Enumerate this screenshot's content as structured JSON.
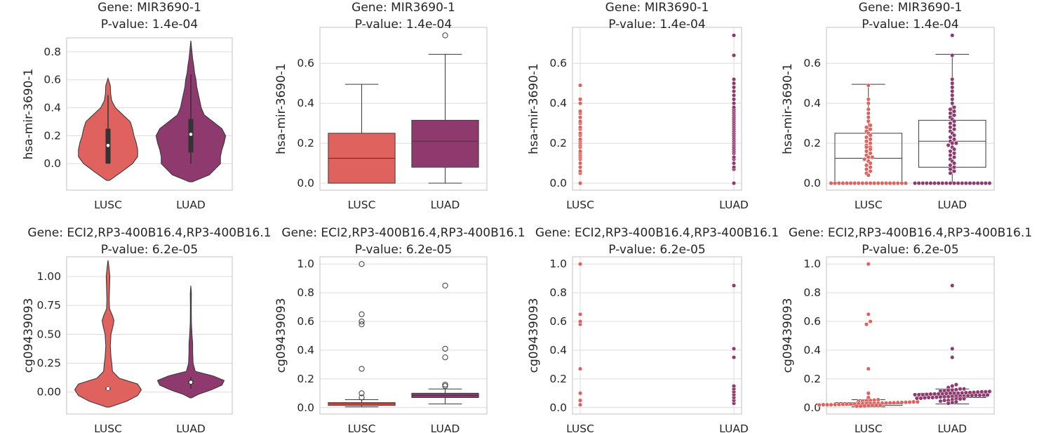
{
  "colors": {
    "lusc": "#e0625f",
    "luad": "#8e3a6e",
    "grid": "#dcdcdc",
    "spine": "#cccccc",
    "line": "#3a3a3a"
  },
  "chart_data": [
    {
      "type": "violin",
      "title": [
        "Gene: MIR3690-1",
        "P-value: 1.4e-04"
      ],
      "ylabel": "hsa-mir-3690-1",
      "categories": [
        "LUSC",
        "LUAD"
      ],
      "ylim": [
        -0.19,
        0.9
      ],
      "yticks": [
        0.0,
        0.2,
        0.4,
        0.6,
        0.8
      ],
      "yticklabels": [
        "0.0",
        "0.2",
        "0.4",
        "0.6",
        "0.8"
      ],
      "violins": [
        {
          "profile": [
            [
              -0.12,
              0.02
            ],
            [
              -0.06,
              0.18
            ],
            [
              0.0,
              0.33
            ],
            [
              0.05,
              0.4
            ],
            [
              0.1,
              0.4
            ],
            [
              0.15,
              0.38
            ],
            [
              0.2,
              0.35
            ],
            [
              0.25,
              0.33
            ],
            [
              0.3,
              0.3
            ],
            [
              0.35,
              0.2
            ],
            [
              0.4,
              0.1
            ],
            [
              0.45,
              0.05
            ],
            [
              0.5,
              0.035
            ],
            [
              0.56,
              0.03
            ],
            [
              0.61,
              0.0
            ]
          ],
          "q1": 0.0,
          "median": 0.13,
          "q3": 0.25,
          "wlo": 0.0,
          "whi": 0.49
        },
        {
          "profile": [
            [
              -0.13,
              0.02
            ],
            [
              -0.08,
              0.25
            ],
            [
              0.0,
              0.4
            ],
            [
              0.05,
              0.4
            ],
            [
              0.1,
              0.42
            ],
            [
              0.15,
              0.45
            ],
            [
              0.2,
              0.47
            ],
            [
              0.25,
              0.42
            ],
            [
              0.3,
              0.3
            ],
            [
              0.35,
              0.18
            ],
            [
              0.4,
              0.14
            ],
            [
              0.45,
              0.12
            ],
            [
              0.5,
              0.1
            ],
            [
              0.55,
              0.08
            ],
            [
              0.6,
              0.07
            ],
            [
              0.65,
              0.05
            ],
            [
              0.7,
              0.04
            ],
            [
              0.75,
              0.025
            ],
            [
              0.8,
              0.015
            ],
            [
              0.88,
              0.0
            ]
          ],
          "q1": 0.08,
          "median": 0.21,
          "q3": 0.32,
          "wlo": 0.0,
          "whi": 0.64
        }
      ]
    },
    {
      "type": "box",
      "title": [
        "Gene: MIR3690-1",
        "P-value: 1.4e-04"
      ],
      "ylabel": "hsa-mir-3690-1",
      "categories": [
        "LUSC",
        "LUAD"
      ],
      "ylim": [
        -0.035,
        0.78
      ],
      "yticks": [
        0.0,
        0.2,
        0.4,
        0.6
      ],
      "yticklabels": [
        "0.0",
        "0.2",
        "0.4",
        "0.6"
      ],
      "boxes": [
        {
          "q1": 0.0,
          "median": 0.125,
          "q3": 0.25,
          "wlo": 0.0,
          "whi": 0.495,
          "fliers": []
        },
        {
          "q1": 0.08,
          "median": 0.21,
          "q3": 0.315,
          "wlo": 0.0,
          "whi": 0.645,
          "fliers": [
            0.74
          ]
        }
      ]
    },
    {
      "type": "strip",
      "title": [
        "Gene: MIR3690-1",
        "P-value: 1.4e-04"
      ],
      "ylabel": "hsa-mir-3690-1",
      "categories": [
        "LUSC",
        "LUAD"
      ],
      "ylim": [
        -0.035,
        0.78
      ],
      "yticks": [
        0.0,
        0.2,
        0.4,
        0.6
      ],
      "yticklabels": [
        "0.0",
        "0.2",
        "0.4",
        "0.6"
      ],
      "points": [
        [
          0.0,
          0.05,
          0.06,
          0.08,
          0.1,
          0.12,
          0.13,
          0.14,
          0.15,
          0.16,
          0.18,
          0.19,
          0.2,
          0.21,
          0.22,
          0.24,
          0.25,
          0.27,
          0.28,
          0.3,
          0.31,
          0.33,
          0.35,
          0.36,
          0.4,
          0.42,
          0.49
        ],
        [
          0.0,
          0.07,
          0.08,
          0.1,
          0.12,
          0.13,
          0.15,
          0.16,
          0.17,
          0.18,
          0.19,
          0.2,
          0.21,
          0.22,
          0.23,
          0.24,
          0.25,
          0.26,
          0.27,
          0.28,
          0.29,
          0.3,
          0.31,
          0.32,
          0.33,
          0.34,
          0.35,
          0.36,
          0.37,
          0.38,
          0.4,
          0.42,
          0.44,
          0.46,
          0.48,
          0.5,
          0.52,
          0.64,
          0.74
        ]
      ]
    },
    {
      "type": "box_swarm",
      "title": [
        "Gene: MIR3690-1",
        "P-value: 1.4e-04"
      ],
      "ylabel": "hsa-mir-3690-1",
      "categories": [
        "LUSC",
        "LUAD"
      ],
      "ylim": [
        -0.035,
        0.78
      ],
      "yticks": [
        0.0,
        0.2,
        0.4,
        0.6
      ],
      "yticklabels": [
        "0.0",
        "0.2",
        "0.4",
        "0.6"
      ],
      "boxes": [
        {
          "q1": 0.0,
          "median": 0.125,
          "q3": 0.25,
          "wlo": 0.0,
          "whi": 0.495
        },
        {
          "q1": 0.08,
          "median": 0.21,
          "q3": 0.315,
          "wlo": 0.0,
          "whi": 0.645
        }
      ],
      "points": [
        [
          0,
          0,
          0,
          0,
          0,
          0,
          0,
          0,
          0,
          0,
          0,
          0,
          0,
          0,
          0,
          0,
          0,
          0,
          0,
          0,
          0.04,
          0.05,
          0.06,
          0.07,
          0.08,
          0.09,
          0.1,
          0.11,
          0.12,
          0.13,
          0.13,
          0.14,
          0.15,
          0.16,
          0.17,
          0.18,
          0.18,
          0.19,
          0.2,
          0.21,
          0.22,
          0.23,
          0.24,
          0.25,
          0.26,
          0.27,
          0.28,
          0.29,
          0.31,
          0.33,
          0.35,
          0.37,
          0.4,
          0.42,
          0.49
        ],
        [
          0,
          0,
          0,
          0,
          0,
          0,
          0,
          0,
          0,
          0,
          0,
          0,
          0,
          0,
          0,
          0,
          0,
          0,
          0,
          0,
          0.05,
          0.06,
          0.07,
          0.08,
          0.09,
          0.1,
          0.11,
          0.12,
          0.13,
          0.14,
          0.15,
          0.16,
          0.17,
          0.18,
          0.19,
          0.2,
          0.2,
          0.21,
          0.22,
          0.23,
          0.24,
          0.25,
          0.26,
          0.27,
          0.28,
          0.29,
          0.3,
          0.31,
          0.32,
          0.33,
          0.34,
          0.35,
          0.36,
          0.37,
          0.38,
          0.4,
          0.42,
          0.44,
          0.46,
          0.48,
          0.5,
          0.52,
          0.64,
          0.74
        ]
      ]
    },
    {
      "type": "violin",
      "title": [
        "Gene: ECI2,RP3-400B16.4,RP3-400B16.1",
        "P-value: 6.2e-05"
      ],
      "ylabel": "cg09439093",
      "categories": [
        "LUSC",
        "LUAD"
      ],
      "ylim": [
        -0.19,
        1.17
      ],
      "yticks": [
        0.0,
        0.25,
        0.5,
        0.75,
        1.0
      ],
      "yticklabels": [
        "0.00",
        "0.25",
        "0.50",
        "0.75",
        "1.00"
      ],
      "violins": [
        {
          "profile": [
            [
              -0.13,
              0.02
            ],
            [
              -0.08,
              0.25
            ],
            [
              -0.03,
              0.4
            ],
            [
              0.02,
              0.45
            ],
            [
              0.07,
              0.4
            ],
            [
              0.12,
              0.15
            ],
            [
              0.18,
              0.06
            ],
            [
              0.25,
              0.05
            ],
            [
              0.3,
              0.04
            ],
            [
              0.4,
              0.03
            ],
            [
              0.5,
              0.04
            ],
            [
              0.58,
              0.07
            ],
            [
              0.62,
              0.08
            ],
            [
              0.66,
              0.06
            ],
            [
              0.72,
              0.02
            ],
            [
              0.8,
              0.015
            ],
            [
              0.9,
              0.02
            ],
            [
              1.0,
              0.025
            ],
            [
              1.08,
              0.012
            ],
            [
              1.14,
              0.0
            ]
          ],
          "q1": 0.02,
          "median": 0.03,
          "q3": 0.04,
          "wlo": 0.01,
          "whi": 0.05
        },
        {
          "profile": [
            [
              -0.05,
              0.01
            ],
            [
              -0.02,
              0.1
            ],
            [
              0.02,
              0.28
            ],
            [
              0.06,
              0.42
            ],
            [
              0.1,
              0.45
            ],
            [
              0.14,
              0.3
            ],
            [
              0.18,
              0.06
            ],
            [
              0.25,
              0.03
            ],
            [
              0.35,
              0.025
            ],
            [
              0.42,
              0.025
            ],
            [
              0.5,
              0.015
            ],
            [
              0.6,
              0.008
            ],
            [
              0.75,
              0.006
            ],
            [
              0.85,
              0.008
            ],
            [
              0.92,
              0.0
            ]
          ],
          "q1": 0.07,
          "median": 0.085,
          "q3": 0.1,
          "wlo": 0.03,
          "whi": 0.13
        }
      ]
    },
    {
      "type": "box",
      "title": [
        "Gene: ECI2,RP3-400B16.4,RP3-400B16.1",
        "P-value: 6.2e-05"
      ],
      "ylabel": "cg09439093",
      "categories": [
        "LUSC",
        "LUAD"
      ],
      "ylim": [
        -0.045,
        1.05
      ],
      "yticks": [
        0.0,
        0.2,
        0.4,
        0.6,
        0.8,
        1.0
      ],
      "yticklabels": [
        "0.0",
        "0.2",
        "0.4",
        "0.6",
        "0.8",
        "1.0"
      ],
      "boxes": [
        {
          "q1": 0.015,
          "median": 0.025,
          "q3": 0.035,
          "wlo": 0.005,
          "whi": 0.055,
          "fliers": [
            0.07,
            0.1,
            0.27,
            0.58,
            0.6,
            0.65,
            1.0
          ]
        },
        {
          "q1": 0.07,
          "median": 0.085,
          "q3": 0.1,
          "wlo": 0.025,
          "whi": 0.13,
          "fliers": [
            0.15,
            0.16,
            0.35,
            0.41,
            0.85
          ]
        }
      ]
    },
    {
      "type": "strip",
      "title": [
        "Gene: ECI2,RP3-400B16.4,RP3-400B16.1",
        "P-value: 6.2e-05"
      ],
      "ylabel": "cg09439093",
      "categories": [
        "LUSC",
        "LUAD"
      ],
      "ylim": [
        -0.045,
        1.05
      ],
      "yticks": [
        0.0,
        0.2,
        0.4,
        0.6,
        0.8,
        1.0
      ],
      "yticklabels": [
        "0.0",
        "0.2",
        "0.4",
        "0.6",
        "0.8",
        "1.0"
      ],
      "points": [
        [
          0.02,
          0.05,
          0.1,
          0.27,
          0.58,
          0.6,
          0.65,
          1.0
        ],
        [
          0.03,
          0.05,
          0.07,
          0.09,
          0.11,
          0.13,
          0.15,
          0.35,
          0.41,
          0.85
        ]
      ]
    },
    {
      "type": "box_swarm",
      "title": [
        "Gene: ECI2,RP3-400B16.4,RP3-400B16.1",
        "P-value: 6.2e-05"
      ],
      "ylabel": "cg09439093",
      "categories": [
        "LUSC",
        "LUAD"
      ],
      "ylim": [
        -0.045,
        1.05
      ],
      "yticks": [
        0.0,
        0.2,
        0.4,
        0.6,
        0.8,
        1.0
      ],
      "yticklabels": [
        "0.0",
        "0.2",
        "0.4",
        "0.6",
        "0.8",
        "1.0"
      ],
      "boxes": [
        {
          "q1": 0.015,
          "median": 0.025,
          "q3": 0.035,
          "wlo": 0.005,
          "whi": 0.055
        },
        {
          "q1": 0.07,
          "median": 0.085,
          "q3": 0.1,
          "wlo": 0.025,
          "whi": 0.13
        }
      ],
      "points": [
        [
          0.01,
          0.01,
          0.012,
          0.014,
          0.015,
          0.015,
          0.016,
          0.018,
          0.02,
          0.02,
          0.02,
          0.021,
          0.022,
          0.023,
          0.024,
          0.025,
          0.025,
          0.026,
          0.027,
          0.028,
          0.029,
          0.03,
          0.03,
          0.031,
          0.032,
          0.033,
          0.034,
          0.035,
          0.036,
          0.037,
          0.038,
          0.04,
          0.04,
          0.042,
          0.045,
          0.048,
          0.05,
          0.052,
          0.055,
          0.07,
          0.1,
          0.27,
          0.58,
          0.6,
          0.65,
          1.0
        ],
        [
          0.03,
          0.035,
          0.04,
          0.045,
          0.05,
          0.05,
          0.055,
          0.06,
          0.06,
          0.062,
          0.065,
          0.065,
          0.068,
          0.07,
          0.07,
          0.072,
          0.074,
          0.075,
          0.076,
          0.078,
          0.08,
          0.08,
          0.08,
          0.082,
          0.084,
          0.085,
          0.085,
          0.086,
          0.088,
          0.09,
          0.09,
          0.09,
          0.092,
          0.094,
          0.095,
          0.095,
          0.096,
          0.098,
          0.1,
          0.1,
          0.1,
          0.102,
          0.104,
          0.105,
          0.106,
          0.108,
          0.11,
          0.11,
          0.112,
          0.115,
          0.118,
          0.12,
          0.122,
          0.125,
          0.13,
          0.13,
          0.14,
          0.15,
          0.16,
          0.35,
          0.41,
          0.85
        ]
      ]
    }
  ]
}
